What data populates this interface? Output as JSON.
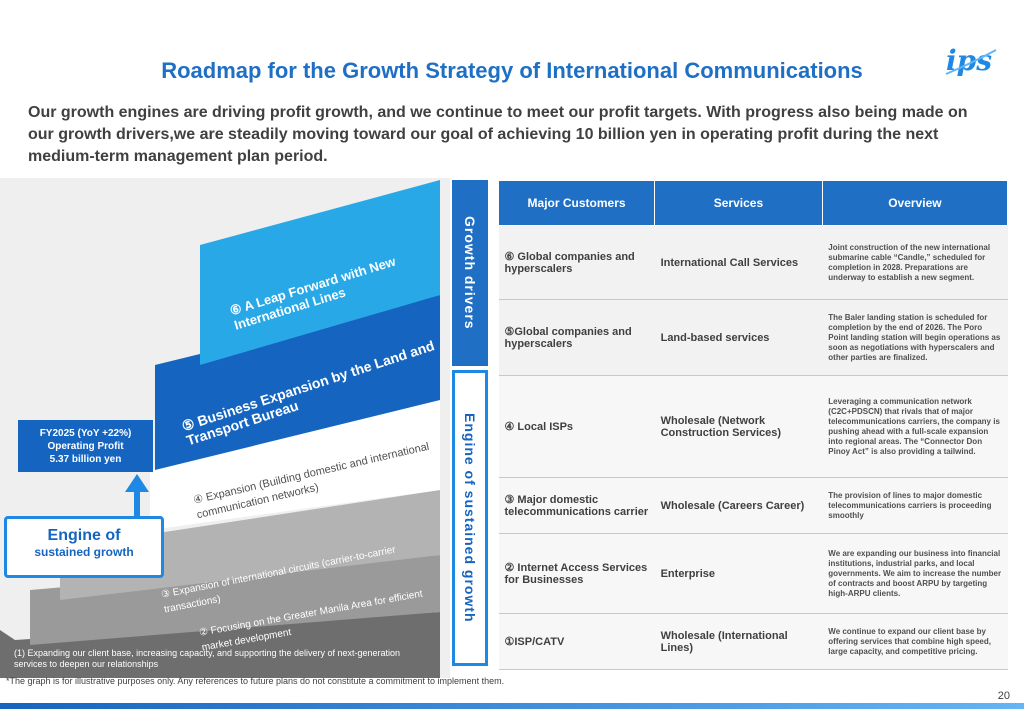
{
  "title": "Roadmap for the Growth Strategy of International Communications",
  "intro": "Our growth engines are driving profit growth, and we continue to meet our profit targets. With progress also being made on our growth drivers,we are steadily moving toward our goal of achieving 10 billion yen in operating profit during the next medium-term management plan period.",
  "logo_text": "ips",
  "callout": {
    "line1": "FY2025 (YoY +22%)",
    "line2": "Operating Profit",
    "line3": "5.37 billion yen"
  },
  "engine_box": {
    "line1": "Engine of",
    "line2": "sustained growth"
  },
  "steps": {
    "s6": "⑥ A Leap Forward with New International Lines",
    "s5": "⑤ Business Expansion by the Land and Transport Bureau",
    "s4": "④ Expansion (Building domestic and international communication networks)",
    "s3": "③ Expansion of international circuits (carrier-to-carrier transactions)",
    "s2": "② Focusing on the Greater Manila Area for efficient market development",
    "s1": "(1) Expanding our client base, increasing capacity, and supporting the delivery of next-generation services to deepen our relationships"
  },
  "vertical": {
    "growth": "Growth drivers",
    "engine": "Engine of sustained growth"
  },
  "table": {
    "headers": [
      "Major Customers",
      "Services",
      "Overview"
    ],
    "rows": [
      {
        "customer": "⑥ Global companies and hyperscalers",
        "service": "International Call Services",
        "overview": "Joint construction of the new international submarine cable “Candle,” scheduled for completion in 2028. Preparations are underway to establish a new segment."
      },
      {
        "customer": "⑤Global companies and hyperscalers",
        "service": "Land-based services",
        "overview": "The Baler landing station is scheduled for completion by the end of 2026. The Poro Point landing station will begin operations as soon as negotiations with hyperscalers and other parties are finalized."
      },
      {
        "customer": "④ Local ISPs",
        "service": "Wholesale (Network Construction Services)",
        "overview": "Leveraging a communication network (C2C+PDSCN) that rivals that of major telecommunications carriers, the company is pushing ahead with a full-scale expansion into regional areas. The “Connector Don Pinoy Act” is also providing a tailwind."
      },
      {
        "customer": "③ Major domestic telecommunications carrier",
        "service": "Wholesale (Careers Career)",
        "overview": "The provision of lines to major domestic telecommunications carriers is proceeding smoothly"
      },
      {
        "customer": "② Internet Access Services for Businesses",
        "service": "Enterprise",
        "overview": "We are expanding our business into financial institutions, industrial parks, and local governments. We aim to increase the number of contracts and boost ARPU by targeting high-ARPU clients."
      },
      {
        "customer": "①ISP/CATV",
        "service": "Wholesale (International Lines)",
        "overview": "We continue to expand our client base by offering services that combine high speed, large capacity, and competitive pricing."
      }
    ]
  },
  "footnote": "*The graph is for illustrative purposes only. Any references to future plans do not constitute a commitment to implement them.",
  "page_number": "20",
  "colors": {
    "brand": "#1f6fc5",
    "light_blue": "#29a8e8",
    "dark_blue": "#1565c0"
  }
}
